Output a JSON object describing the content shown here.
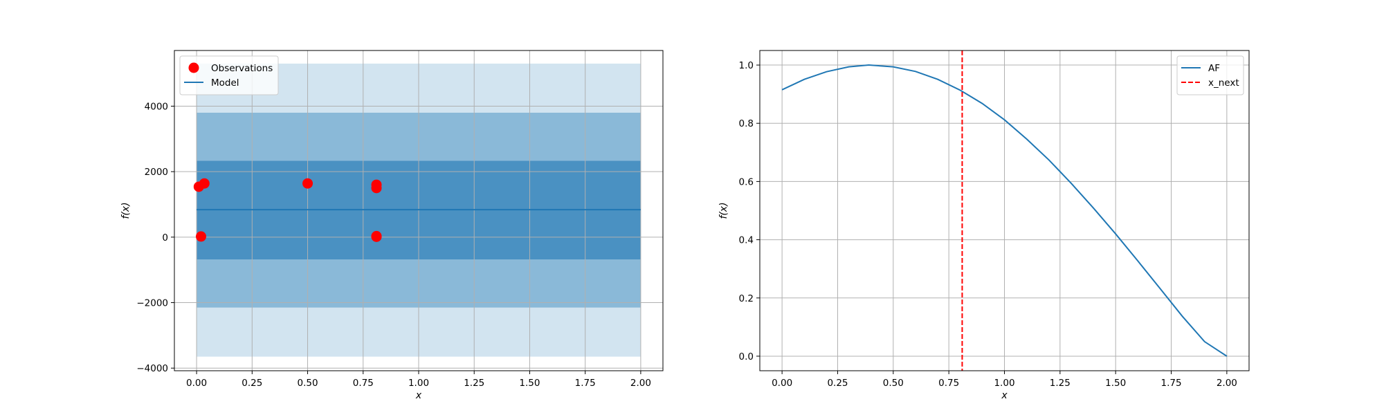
{
  "chart_data": [
    {
      "type": "scatter",
      "xlabel": "x",
      "ylabel": "f(x)",
      "xlim": [
        -0.1,
        2.1
      ],
      "ylim": [
        -4080,
        5700
      ],
      "x_ticks": [
        {
          "v": 0.0,
          "label": "0.00"
        },
        {
          "v": 0.25,
          "label": "0.25"
        },
        {
          "v": 0.5,
          "label": "0.50"
        },
        {
          "v": 0.75,
          "label": "0.75"
        },
        {
          "v": 1.0,
          "label": "1.00"
        },
        {
          "v": 1.25,
          "label": "1.25"
        },
        {
          "v": 1.5,
          "label": "1.50"
        },
        {
          "v": 1.75,
          "label": "1.75"
        },
        {
          "v": 2.0,
          "label": "2.00"
        }
      ],
      "y_ticks": [
        {
          "v": -4000,
          "label": "−4000"
        },
        {
          "v": -2000,
          "label": "−2000"
        },
        {
          "v": 0,
          "label": "0"
        },
        {
          "v": 2000,
          "label": "2000"
        },
        {
          "v": 4000,
          "label": "4000"
        }
      ],
      "grid": true,
      "legend_position": "top-left",
      "legend": [
        {
          "label": "Observations",
          "marker": "circle",
          "color": "#ff0000"
        },
        {
          "label": "Model",
          "marker": "line",
          "color": "#1f77b4"
        }
      ],
      "bands": [
        {
          "x": [
            0.0,
            2.0
          ],
          "y_low": -3650,
          "y_high": 5300,
          "color": "#1f77b4",
          "alpha": 0.2
        },
        {
          "x": [
            0.0,
            2.0
          ],
          "y_low": -2150,
          "y_high": 3800,
          "color": "#1f77b4",
          "alpha": 0.4
        },
        {
          "x": [
            0.0,
            2.0
          ],
          "y_low": -680,
          "y_high": 2330,
          "color": "#1f77b4",
          "alpha": 0.6
        }
      ],
      "series": [
        {
          "name": "Observations",
          "kind": "scatter",
          "color": "#ff0000",
          "points": [
            {
              "x": 0.01,
              "y": 1540
            },
            {
              "x": 0.035,
              "y": 1640
            },
            {
              "x": 0.02,
              "y": 20
            },
            {
              "x": 0.5,
              "y": 1640
            },
            {
              "x": 0.81,
              "y": 1600
            },
            {
              "x": 0.81,
              "y": 1500
            },
            {
              "x": 0.81,
              "y": 30
            },
            {
              "x": 0.81,
              "y": 10
            }
          ]
        },
        {
          "name": "Model",
          "kind": "line",
          "color": "#1f77b4",
          "points": [
            {
              "x": 0.0,
              "y": 840
            },
            {
              "x": 2.0,
              "y": 840
            }
          ]
        }
      ]
    },
    {
      "type": "line",
      "xlabel": "x",
      "ylabel": "f(x)",
      "xlim": [
        -0.1,
        2.1
      ],
      "ylim": [
        -0.05,
        1.05
      ],
      "x_ticks": [
        {
          "v": 0.0,
          "label": "0.00"
        },
        {
          "v": 0.25,
          "label": "0.25"
        },
        {
          "v": 0.5,
          "label": "0.50"
        },
        {
          "v": 0.75,
          "label": "0.75"
        },
        {
          "v": 1.0,
          "label": "1.00"
        },
        {
          "v": 1.25,
          "label": "1.25"
        },
        {
          "v": 1.5,
          "label": "1.50"
        },
        {
          "v": 1.75,
          "label": "1.75"
        },
        {
          "v": 2.0,
          "label": "2.00"
        }
      ],
      "y_ticks": [
        {
          "v": 0.0,
          "label": "0.0"
        },
        {
          "v": 0.2,
          "label": "0.2"
        },
        {
          "v": 0.4,
          "label": "0.4"
        },
        {
          "v": 0.6,
          "label": "0.6"
        },
        {
          "v": 0.8,
          "label": "0.8"
        },
        {
          "v": 1.0,
          "label": "1.0"
        }
      ],
      "grid": true,
      "legend_position": "top-right",
      "legend": [
        {
          "label": "AF",
          "marker": "line",
          "color": "#1f77b4"
        },
        {
          "label": "x_next",
          "marker": "dashed-line",
          "color": "#ff0000"
        }
      ],
      "series": [
        {
          "name": "AF",
          "kind": "line",
          "color": "#1f77b4",
          "points": [
            {
              "x": 0.0,
              "y": 0.915
            },
            {
              "x": 0.1,
              "y": 0.951
            },
            {
              "x": 0.2,
              "y": 0.977
            },
            {
              "x": 0.3,
              "y": 0.994
            },
            {
              "x": 0.39,
              "y": 1.0
            },
            {
              "x": 0.5,
              "y": 0.994
            },
            {
              "x": 0.6,
              "y": 0.978
            },
            {
              "x": 0.7,
              "y": 0.951
            },
            {
              "x": 0.8,
              "y": 0.914
            },
            {
              "x": 0.9,
              "y": 0.868
            },
            {
              "x": 1.0,
              "y": 0.812
            },
            {
              "x": 1.1,
              "y": 0.746
            },
            {
              "x": 1.2,
              "y": 0.674
            },
            {
              "x": 1.3,
              "y": 0.594
            },
            {
              "x": 1.4,
              "y": 0.509
            },
            {
              "x": 1.5,
              "y": 0.42
            },
            {
              "x": 1.6,
              "y": 0.327
            },
            {
              "x": 1.7,
              "y": 0.232
            },
            {
              "x": 1.8,
              "y": 0.137
            },
            {
              "x": 1.9,
              "y": 0.05
            },
            {
              "x": 2.0,
              "y": 0.0
            }
          ]
        },
        {
          "name": "x_next",
          "kind": "vline",
          "color": "#ff0000",
          "x": 0.81
        }
      ]
    }
  ]
}
